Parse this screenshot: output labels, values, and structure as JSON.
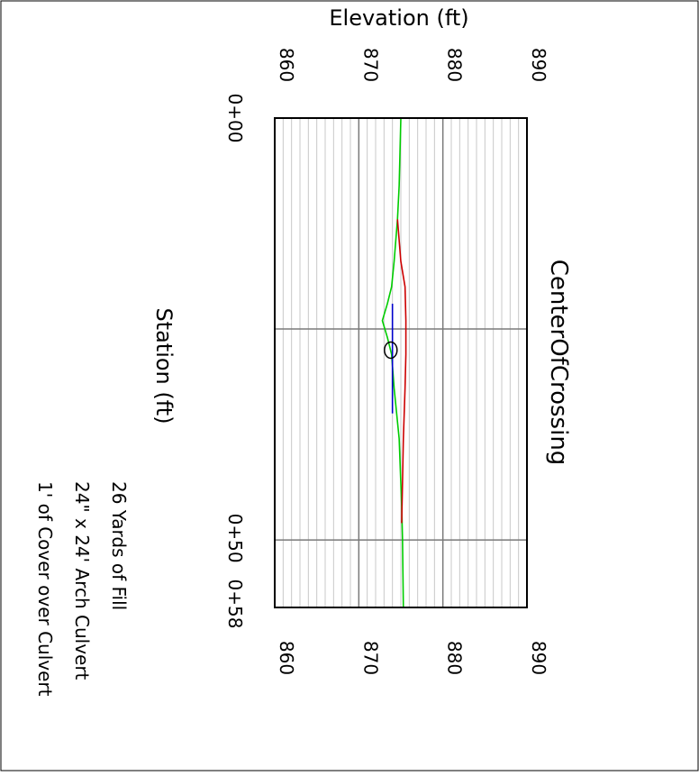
{
  "chart_data": {
    "type": "line",
    "title": "CenterOfCrossing",
    "xlabel": "Station (ft)",
    "ylabel": "Elevation (ft)",
    "xlim": [
      0,
      58
    ],
    "ylim": [
      860,
      890
    ],
    "x_ticks": [
      {
        "value": 0,
        "label": "0+00"
      },
      {
        "value": 50,
        "label": "0+50"
      },
      {
        "value": 58,
        "label": "0+58"
      }
    ],
    "y_ticks": [
      860,
      870,
      880,
      890
    ],
    "y_tick_labels": [
      "860",
      "870",
      "880",
      "890"
    ],
    "grid": true,
    "series": [
      {
        "color": "#00cc00",
        "x": [
          0,
          8,
          12,
          17,
          20,
          22,
          24,
          26,
          28,
          32,
          38,
          46,
          50,
          58
        ],
        "y": [
          875.0,
          874.8,
          874.6,
          874.2,
          873.9,
          873.4,
          872.8,
          873.4,
          873.9,
          874.2,
          874.8,
          875.1,
          875.2,
          875.3
        ]
      },
      {
        "color": "#cc0000",
        "x": [
          12,
          17,
          20,
          24,
          28,
          32,
          38,
          48
        ],
        "y": [
          874.6,
          875.0,
          875.5,
          875.6,
          875.6,
          875.5,
          875.3,
          875.1
        ]
      },
      {
        "color": "#0000cc",
        "x": [
          22,
          24,
          26,
          28,
          32,
          35
        ],
        "y": [
          874.0,
          874.0,
          874.0,
          874.0,
          874.0,
          874.0
        ]
      }
    ],
    "culvert_marker": {
      "x": 27.5,
      "y": 873.8,
      "color": "#000000"
    },
    "notes": [
      "26 Yards of Fill",
      "24\" x 24' Arch Culvert",
      "1' of Cover over Culvert"
    ]
  }
}
